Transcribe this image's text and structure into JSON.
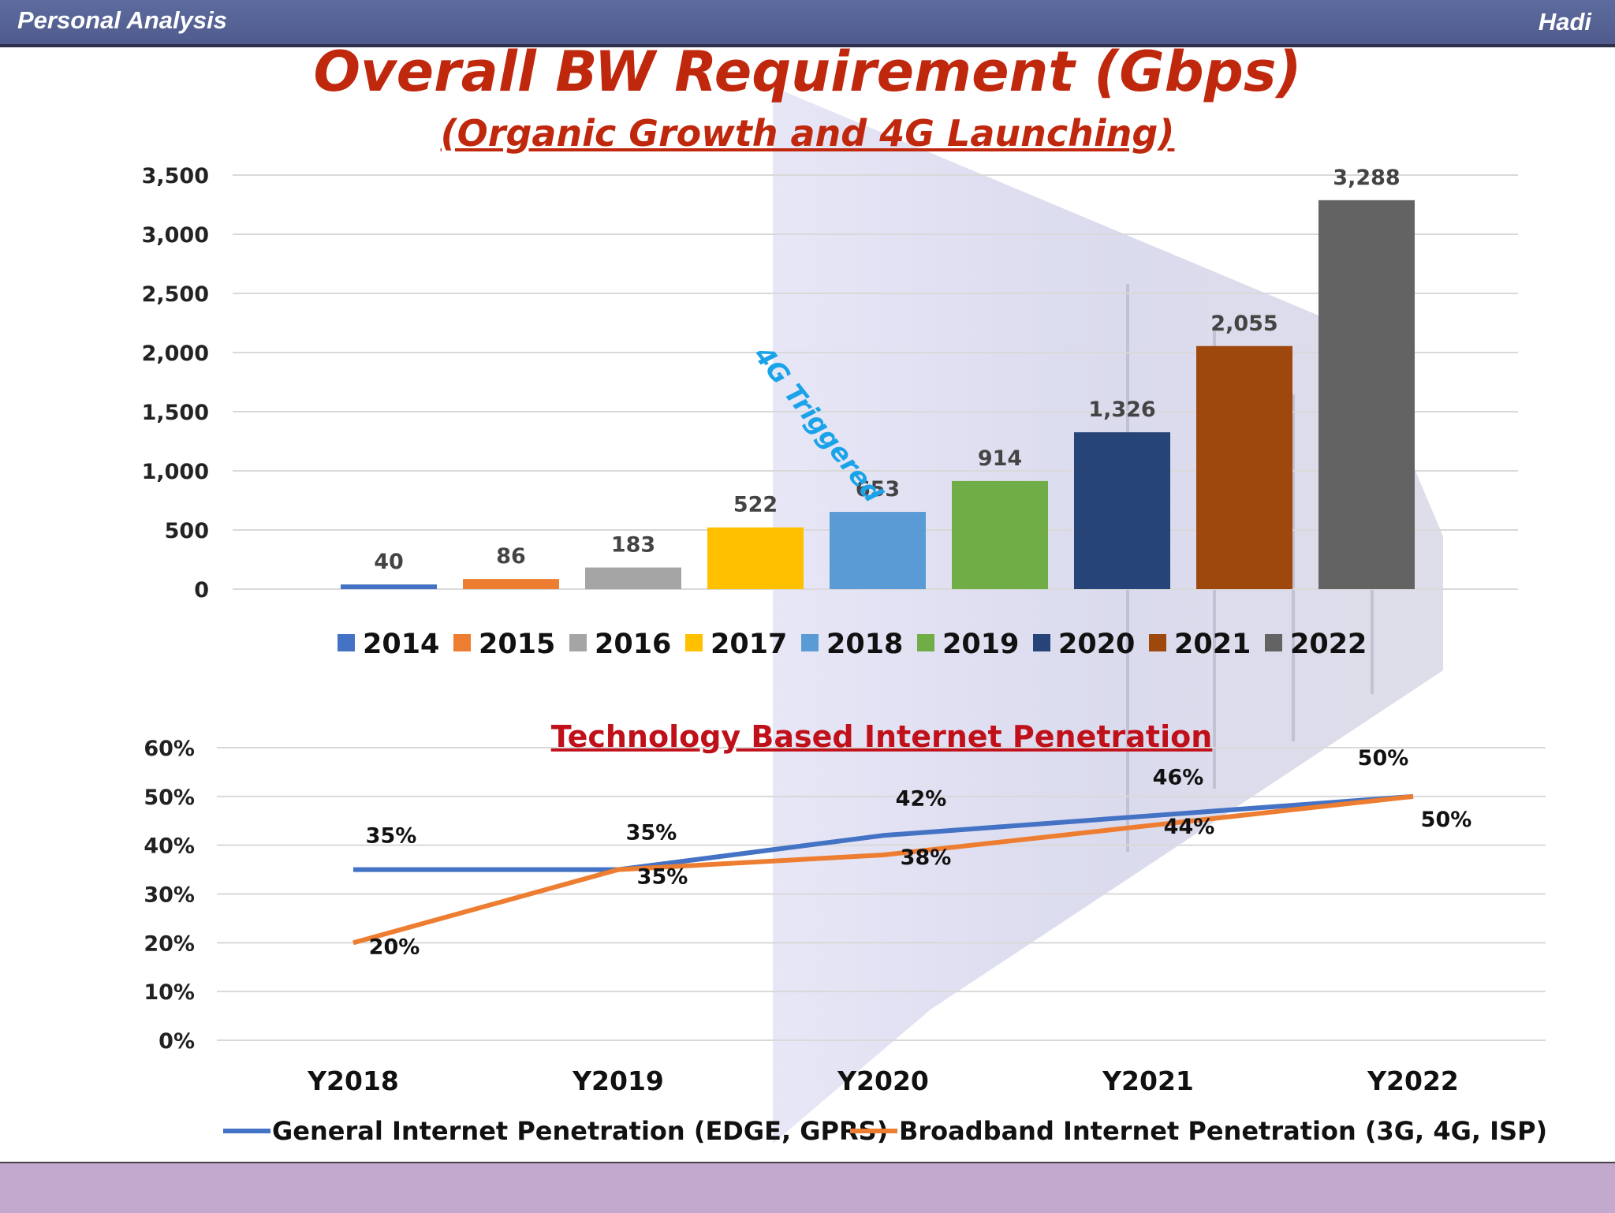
{
  "header": {
    "left_text": "Personal Analysis",
    "right_text": "Hadi"
  },
  "title": "Overall BW Requirement (Gbps)",
  "subtitle": "(Organic Growth and 4G Launching)",
  "annotation": "4G Triggered",
  "chart_data": [
    {
      "type": "bar",
      "categories": [
        "2014",
        "2015",
        "2016",
        "2017",
        "2018",
        "2019",
        "2020",
        "2021",
        "2022"
      ],
      "values": [
        40,
        86,
        183,
        522,
        653,
        914,
        1326,
        2055,
        3288
      ],
      "value_labels": [
        "40",
        "86",
        "183",
        "522",
        "653",
        "914",
        "1,326",
        "2,055",
        "3,288"
      ],
      "colors": [
        "#4472c4",
        "#ed7d31",
        "#a5a5a5",
        "#ffc000",
        "#5b9bd5",
        "#70ad47",
        "#264478",
        "#9e480e",
        "#636363"
      ],
      "yticks": [
        "0",
        "500",
        "1,000",
        "1,500",
        "2,000",
        "2,500",
        "3,000",
        "3,500"
      ],
      "ylim": [
        0,
        3500
      ],
      "legend": "bottom",
      "grid": true
    },
    {
      "type": "line",
      "title": "Technology Based Internet Penetration",
      "categories": [
        "Y2018",
        "Y2019",
        "Y2020",
        "Y2021",
        "Y2022"
      ],
      "yticks": [
        "0%",
        "10%",
        "20%",
        "30%",
        "40%",
        "50%",
        "60%"
      ],
      "ylim": [
        0,
        60
      ],
      "grid": true,
      "legend": "bottom",
      "series": [
        {
          "name": "General Internet Penetration (EDGE, GPRS)",
          "color": "#4472c4",
          "values": [
            35,
            35,
            42,
            46,
            50
          ],
          "labels": [
            "35%",
            "35%",
            "42%",
            "46%",
            "50%"
          ]
        },
        {
          "name": "Broadband Internet Penetration (3G, 4G, ISP)",
          "color": "#ed7d31",
          "values": [
            20,
            35,
            38,
            44,
            50
          ],
          "labels": [
            "20%",
            "35%",
            "38%",
            "44%",
            "50%"
          ]
        }
      ]
    }
  ]
}
